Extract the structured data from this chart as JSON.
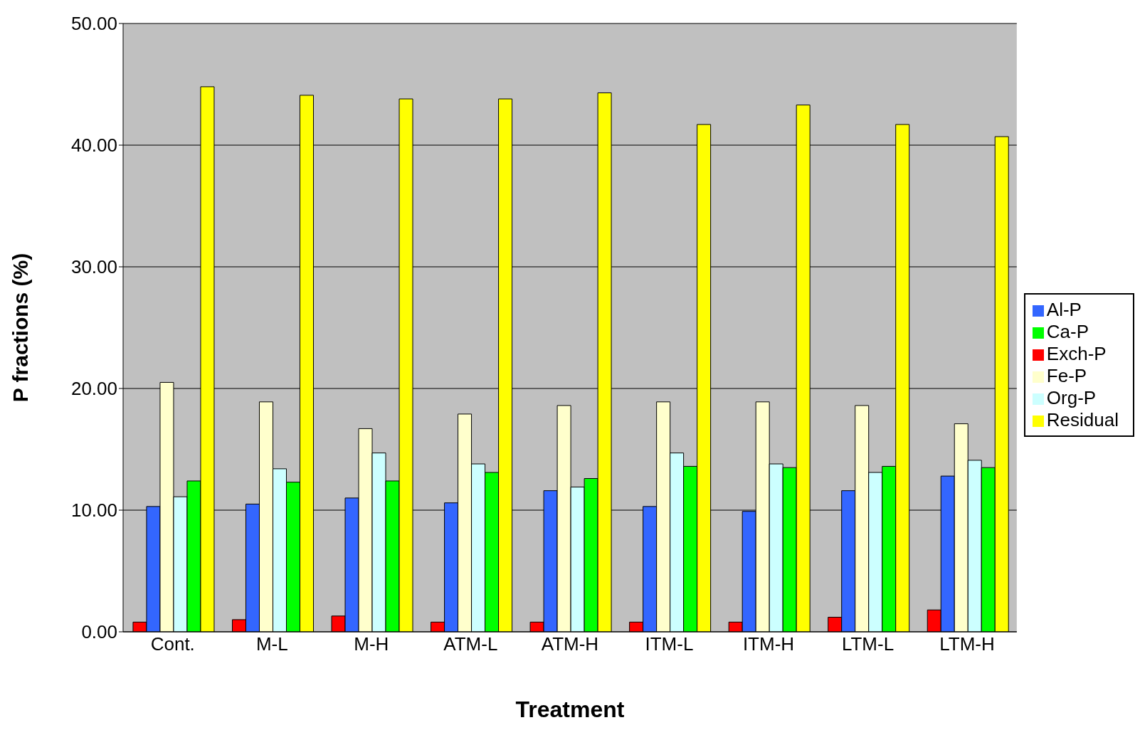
{
  "chart_data": {
    "type": "bar",
    "xlabel": "Treatment",
    "ylabel": "P fractions (%)",
    "categories": [
      "Cont.",
      "M-L",
      "M-H",
      "ATM-L",
      "ATM-H",
      "ITM-L",
      "ITM-H",
      "LTM-L",
      "LTM-H"
    ],
    "series": [
      {
        "name": "Exch-P",
        "color": "#ff0000",
        "values": [
          0.8,
          1.0,
          1.3,
          0.8,
          0.8,
          0.8,
          0.8,
          1.2,
          1.8
        ]
      },
      {
        "name": "Al-P",
        "color": "#3366ff",
        "values": [
          10.3,
          10.5,
          11.0,
          10.6,
          11.6,
          10.3,
          9.9,
          11.6,
          12.8
        ]
      },
      {
        "name": "Fe-P",
        "color": "#ffffcc",
        "values": [
          20.5,
          18.9,
          16.7,
          17.9,
          18.6,
          18.9,
          18.9,
          18.6,
          17.1
        ]
      },
      {
        "name": "Org-P",
        "color": "#ccffff",
        "values": [
          11.1,
          13.4,
          14.7,
          13.8,
          11.9,
          14.7,
          13.8,
          13.1,
          14.1
        ]
      },
      {
        "name": "Ca-P",
        "color": "#00ff00",
        "values": [
          12.4,
          12.3,
          12.4,
          13.1,
          12.6,
          13.6,
          13.5,
          13.6,
          13.5
        ]
      },
      {
        "name": "Residual",
        "color": "#ffff00",
        "values": [
          44.8,
          44.1,
          43.8,
          43.8,
          44.3,
          41.7,
          43.3,
          41.7,
          40.7
        ]
      }
    ],
    "ylim": [
      0,
      50
    ],
    "yticks": [
      {
        "value": 0,
        "label": "0.00"
      },
      {
        "value": 10,
        "label": "10.00"
      },
      {
        "value": 20,
        "label": "20.00"
      },
      {
        "value": 30,
        "label": "30.00"
      },
      {
        "value": 40,
        "label": "40.00"
      },
      {
        "value": 50,
        "label": "50.00"
      }
    ],
    "grid": "y",
    "legend": "right"
  }
}
